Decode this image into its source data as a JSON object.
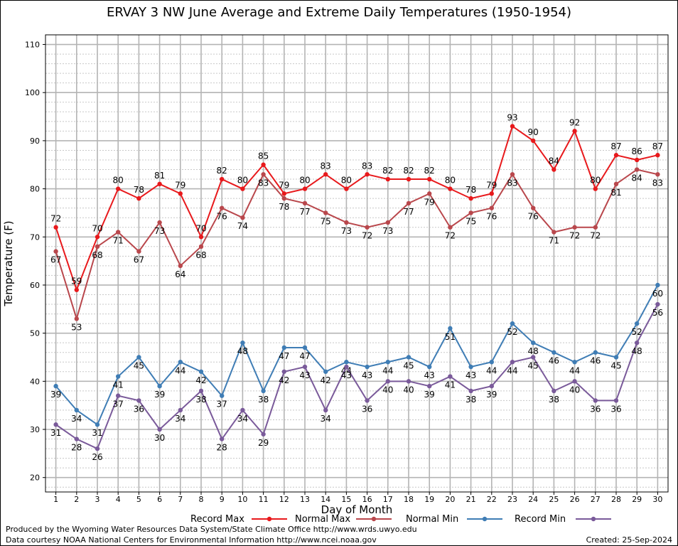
{
  "title": "ERVAY 3 NW June Average and Extreme Daily Temperatures (1950-1954)",
  "footer": {
    "produced_by": "Produced by the Wyoming Water Resources Data System/State Climate Office http://www.wrds.uwyo.edu",
    "courtesy": "Data courtesy NOAA National Centers for Environmental Information http://www.ncei.noaa.gov",
    "created": "Created:  25-Sep-2024"
  },
  "chart_data": {
    "type": "line",
    "title": "ERVAY 3 NW June Average and Extreme Daily Temperatures (1950-1954)",
    "xlabel": "Day of Month",
    "ylabel": "Temperature (F)",
    "xlim": [
      0.5,
      30.5
    ],
    "ylim": [
      17,
      112
    ],
    "yticks": [
      20,
      30,
      40,
      50,
      60,
      70,
      80,
      90,
      100,
      110
    ],
    "x": [
      1,
      2,
      3,
      4,
      5,
      6,
      7,
      8,
      9,
      10,
      11,
      12,
      13,
      14,
      15,
      16,
      17,
      18,
      19,
      20,
      21,
      22,
      23,
      24,
      25,
      26,
      27,
      28,
      29,
      30
    ],
    "grid": true,
    "legend_position": "bottom",
    "series": [
      {
        "name": "Record Max",
        "color": "#e8191c",
        "values": [
          72,
          59,
          70,
          80,
          78,
          81,
          79,
          70,
          82,
          80,
          85,
          79,
          80,
          83,
          80,
          83,
          82,
          82,
          82,
          80,
          78,
          79,
          93,
          90,
          84,
          92,
          80,
          87,
          86,
          87
        ]
      },
      {
        "name": "Normal Max",
        "color": "#b9474c",
        "values": [
          67,
          53,
          68,
          71,
          67,
          73,
          64,
          68,
          76,
          74,
          83,
          78,
          77,
          75,
          73,
          72,
          73,
          77,
          79,
          72,
          75,
          76,
          83,
          76,
          71,
          72,
          72,
          81,
          84,
          83
        ]
      },
      {
        "name": "Normal Min",
        "color": "#3f7db5",
        "values": [
          39,
          34,
          31,
          41,
          45,
          39,
          44,
          42,
          37,
          48,
          38,
          47,
          47,
          42,
          44,
          43,
          44,
          45,
          43,
          51,
          43,
          44,
          52,
          48,
          46,
          44,
          46,
          45,
          52,
          60
        ]
      },
      {
        "name": "Record Min",
        "color": "#7a5a9a",
        "values": [
          31,
          28,
          26,
          37,
          36,
          30,
          34,
          38,
          28,
          34,
          29,
          42,
          43,
          34,
          43,
          36,
          40,
          40,
          39,
          41,
          38,
          39,
          44,
          45,
          38,
          40,
          36,
          36,
          48,
          56
        ]
      }
    ]
  }
}
